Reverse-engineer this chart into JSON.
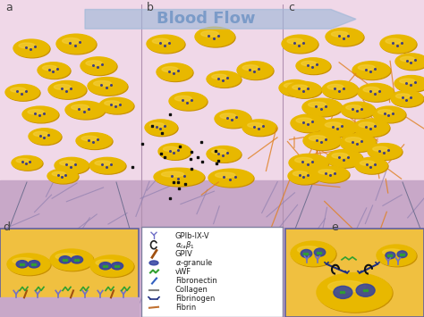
{
  "title": "Blood Flow",
  "title_color": "#7B9BC8",
  "bg_top_color": "#F0D8E8",
  "bg_vessel_color": "#C8A8C8",
  "bg_bottom_color": "#D4B0D4",
  "platelet_color": "#E8B800",
  "platelet_shine": "#F5D040",
  "platelet_shadow": "#C89000",
  "panel_labels": [
    "a",
    "b",
    "c",
    "d",
    "e"
  ],
  "collagen_line_color": "#9080B0",
  "fibrin_color": "#E08020",
  "panel_d_bg": "#F0C040",
  "panel_e_bg": "#F0C040",
  "scatter_color": "#101010",
  "arrow_color": "#A0B8D8",
  "border_color": "#6060A0"
}
